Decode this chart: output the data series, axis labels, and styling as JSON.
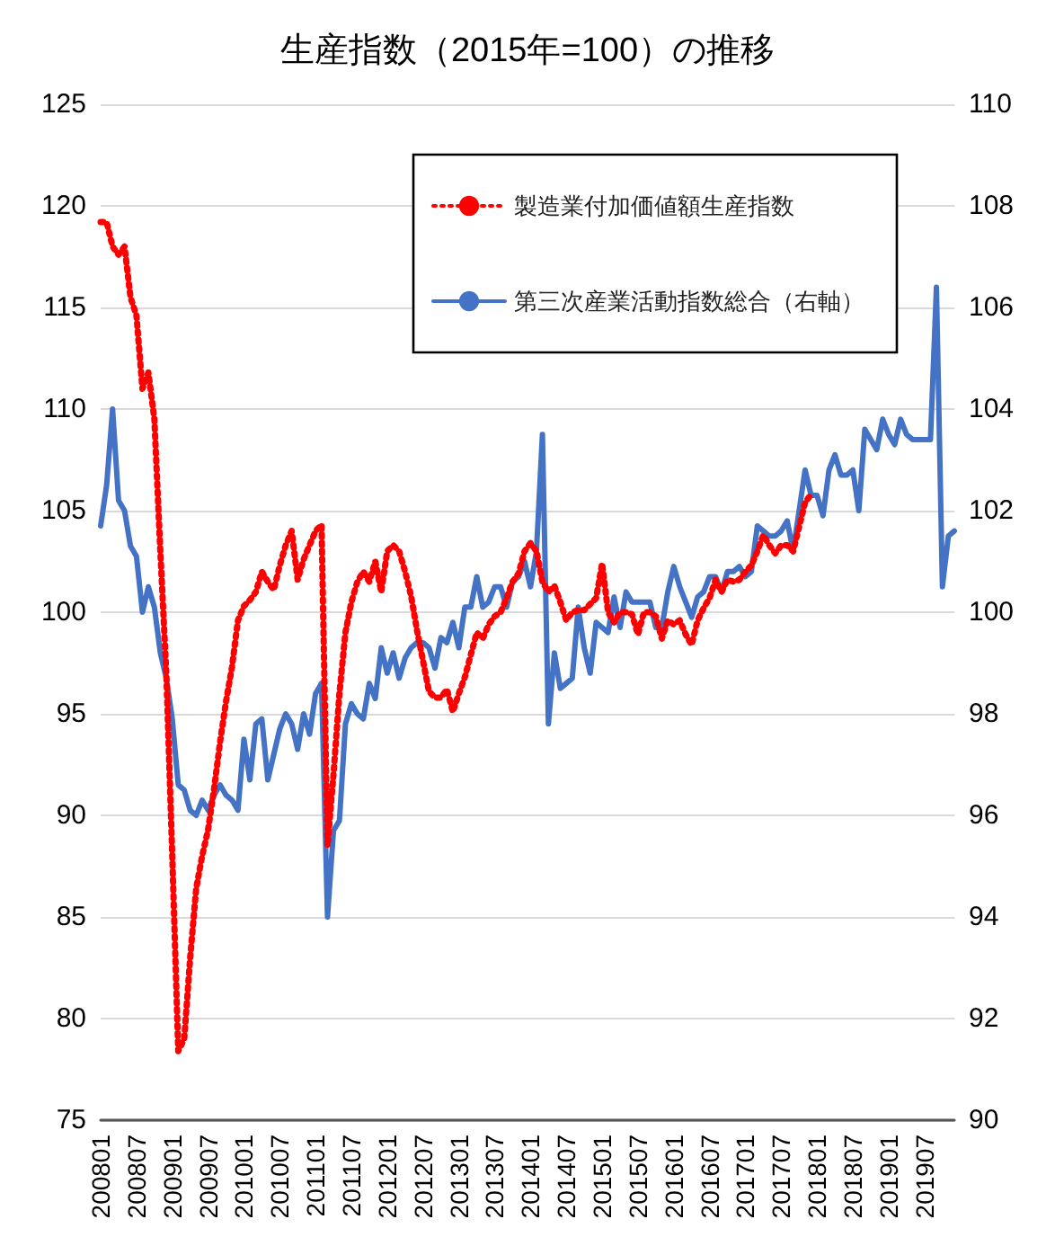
{
  "chart_data": {
    "type": "line",
    "title": "生産指数（2015年=100）の推移",
    "categories": [
      "200801",
      null,
      null,
      null,
      null,
      null,
      "200807",
      null,
      null,
      null,
      null,
      null,
      "200901",
      null,
      null,
      null,
      null,
      null,
      "200907",
      null,
      null,
      null,
      null,
      null,
      "201001",
      null,
      null,
      null,
      null,
      null,
      "201007",
      null,
      null,
      null,
      null,
      null,
      "201101",
      null,
      null,
      null,
      null,
      null,
      "201107",
      null,
      null,
      null,
      null,
      null,
      "201201",
      null,
      null,
      null,
      null,
      null,
      "201207",
      null,
      null,
      null,
      null,
      null,
      "201301",
      null,
      null,
      null,
      null,
      null,
      "201307",
      null,
      null,
      null,
      null,
      null,
      "201401",
      null,
      null,
      null,
      null,
      null,
      "201407",
      null,
      null,
      null,
      null,
      null,
      "201501",
      null,
      null,
      null,
      null,
      null,
      "201507",
      null,
      null,
      null,
      null,
      null,
      "201601",
      null,
      null,
      null,
      null,
      null,
      "201607",
      null,
      null,
      null,
      null,
      null,
      "201701",
      null,
      null,
      null,
      null,
      null,
      "201707",
      null,
      null,
      null,
      null,
      null,
      "201801",
      null,
      null,
      null,
      null,
      null,
      "201807",
      null,
      null,
      null,
      null,
      null,
      "201901",
      null,
      null,
      null,
      null,
      null,
      "201907",
      null,
      null,
      null,
      null,
      null
    ],
    "series": [
      {
        "name": "製造業付加価値額生産指数",
        "color": "#ff0000",
        "line_style": "dotted",
        "values": [
          119.2,
          119.2,
          118,
          117.6,
          118,
          115.5,
          114.6,
          111,
          111.8,
          109.5,
          103,
          97,
          88,
          78.4,
          79,
          83,
          86.4,
          88,
          89.3,
          91.3,
          93.6,
          95.6,
          97.3,
          99.6,
          100.3,
          100.6,
          101,
          102,
          101.5,
          101.1,
          102.3,
          103.3,
          104,
          101.6,
          102.6,
          103.3,
          104,
          104.3,
          88.5,
          92,
          96,
          99,
          100.5,
          101.5,
          102,
          101.5,
          102.5,
          101,
          103,
          103.3,
          103,
          102,
          100.8,
          99.1,
          97.6,
          96.1,
          95.8,
          95.8,
          96.2,
          95.1,
          96,
          96.8,
          97.9,
          99,
          98.7,
          99.4,
          99.8,
          100,
          100.7,
          101.5,
          101.9,
          103,
          103.4,
          103,
          101.5,
          101,
          101.3,
          100.5,
          99.6,
          100,
          100.1,
          100.1,
          100.4,
          100.7,
          102.4,
          100,
          99.5,
          100,
          100,
          99.9,
          98.9,
          100,
          100,
          99.8,
          98.7,
          99.6,
          99.4,
          99.6,
          98.9,
          98.4,
          99.6,
          100.2,
          100.7,
          101.6,
          101,
          101.6,
          101.5,
          101.6,
          102,
          102.3,
          103,
          103.8,
          103.3,
          102.9,
          103.3,
          103.3,
          103,
          104.2,
          105.4,
          105.8,
          null,
          null,
          null,
          null,
          null,
          null,
          null,
          null,
          null,
          null,
          null,
          null,
          null,
          null,
          null,
          null,
          null,
          null,
          null,
          null,
          null,
          null,
          null,
          null
        ]
      },
      {
        "name": "第三次産業活動指数総合（右軸）",
        "color": "#4472c4",
        "line_style": "solid",
        "axis": "y2",
        "values": [
          101.7,
          102.5,
          104,
          102.2,
          102,
          101.3,
          101.1,
          100,
          100.5,
          100.1,
          99.2,
          98.7,
          97.9,
          96.6,
          96.5,
          96.1,
          96,
          96.3,
          96.1,
          96.4,
          96.6,
          96.4,
          96.3,
          96.1,
          97.5,
          96.7,
          97.8,
          97.9,
          96.7,
          97.2,
          97.7,
          98,
          97.8,
          97.3,
          98,
          97.6,
          98.4,
          98.6,
          94,
          95.7,
          95.9,
          97.8,
          98.2,
          98,
          97.9,
          98.6,
          98.3,
          99.3,
          98.8,
          99.2,
          98.7,
          99.1,
          99.3,
          99.4,
          99.4,
          99.3,
          98.9,
          99.5,
          99.4,
          99.8,
          99.3,
          100.1,
          100.1,
          100.7,
          100.1,
          100.2,
          100.5,
          100.5,
          100.1,
          100.6,
          100.7,
          101,
          100.5,
          101.2,
          103.5,
          97.8,
          99.2,
          98.5,
          98.6,
          98.7,
          100.1,
          99.3,
          98.8,
          99.8,
          99.7,
          99.6,
          100.3,
          99.7,
          100.4,
          100.2,
          100.2,
          100.2,
          100.2,
          99.7,
          99.7,
          100.4,
          100.9,
          100.5,
          100.2,
          99.9,
          100.3,
          100.4,
          100.7,
          100.7,
          100.4,
          100.8,
          100.8,
          100.9,
          100.7,
          100.8,
          101.7,
          101.6,
          101.5,
          101.5,
          101.6,
          101.8,
          101.2,
          102,
          102.8,
          102.3,
          102.3,
          101.9,
          102.8,
          103.1,
          102.7,
          102.7,
          102.8,
          102,
          103.6,
          103.4,
          103.2,
          103.8,
          103.5,
          103.3,
          103.8,
          103.5,
          103.4,
          103.4,
          103.4,
          103.4,
          106.4,
          100.5,
          101.5,
          101.6
        ]
      }
    ],
    "ylim": [
      75,
      125
    ],
    "yticks": [
      75,
      80,
      85,
      90,
      95,
      100,
      105,
      110,
      115,
      120,
      125
    ],
    "y2lim": [
      90,
      110
    ],
    "y2ticks": [
      90,
      92,
      94,
      96,
      98,
      100,
      102,
      104,
      106,
      108,
      110
    ],
    "grid": "y",
    "legend": "top right",
    "marker": "none"
  }
}
